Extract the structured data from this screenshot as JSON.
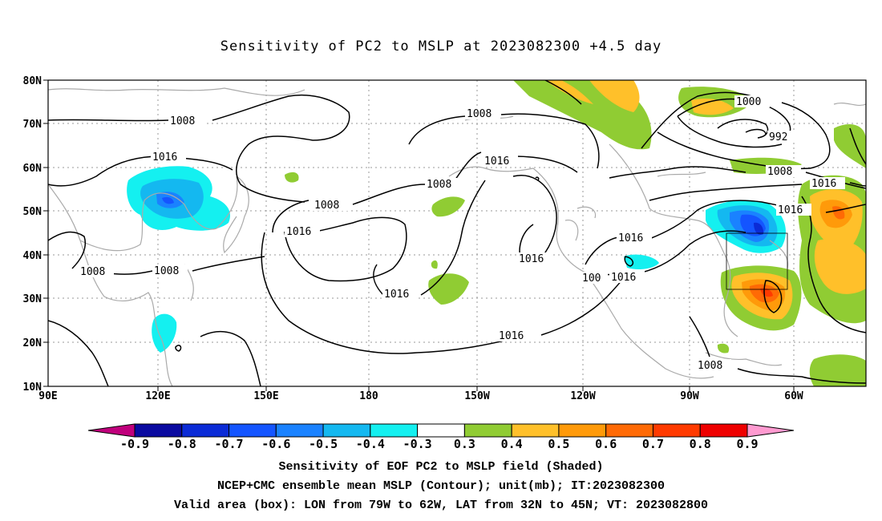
{
  "title": "Sensitivity of PC2 to MSLP at 2023082300 +4.5 day",
  "map": {
    "lon_labels": [
      "90E",
      "120E",
      "150E",
      "180",
      "150W",
      "120W",
      "90W",
      "60W"
    ],
    "lat_labels": [
      "80N",
      "70N",
      "60N",
      "50N",
      "40N",
      "30N",
      "20N",
      "10N"
    ],
    "contour_labels": [
      "1008",
      "1008",
      "1016",
      "1008",
      "1008",
      "1016",
      "1008",
      "1016",
      "1008",
      "1008",
      "1016",
      "1016",
      "1016",
      "1016",
      "100",
      "1016",
      "1000",
      "992",
      "1008",
      "1016",
      "1016",
      "1008"
    ],
    "valid_box": {
      "lon_from": "79W",
      "lon_to": "62W",
      "lat_from": "32N",
      "lat_to": "45N"
    }
  },
  "colorbar": {
    "labels": [
      "-0.9",
      "-0.8",
      "-0.7",
      "-0.6",
      "-0.5",
      "-0.4",
      "-0.3",
      "0.3",
      "0.4",
      "0.5",
      "0.6",
      "0.7",
      "0.8",
      "0.9"
    ],
    "colors": [
      "#c0007c",
      "#0a0aa0",
      "#0b2bd6",
      "#1455ff",
      "#1a82ff",
      "#14b8f0",
      "#14f0f0",
      "#ffffff",
      "#90cc33",
      "#ffc02a",
      "#ff9a0a",
      "#ff6a05",
      "#ff3a00",
      "#ee0000",
      "#ff9ad0"
    ]
  },
  "captions": [
    "Sensitivity of EOF PC2 to MSLP field (Shaded)",
    "NCEP+CMC ensemble mean MSLP (Contour); unit(mb); IT:2023082300",
    "Valid area (box): LON from 79W to 62W, LAT from 32N to 45N; VT: 2023082800"
  ]
}
